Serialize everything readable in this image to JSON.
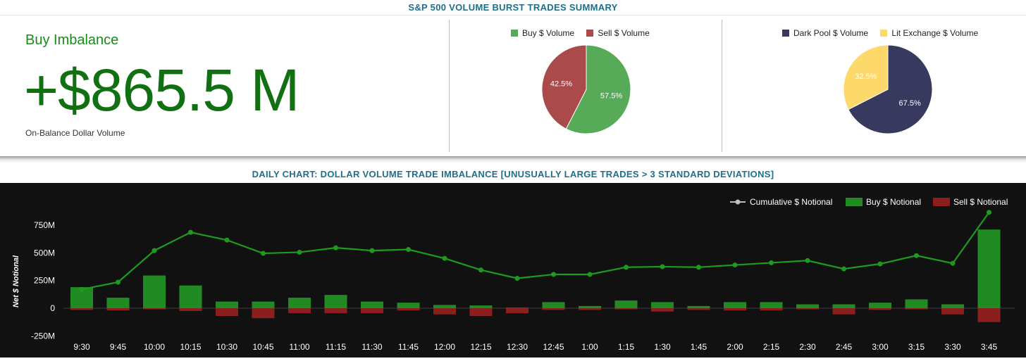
{
  "header": {
    "title": "S&P 500 VOLUME BURST TRADES SUMMARY"
  },
  "kpi": {
    "label": "Buy Imbalance",
    "value": "+$865.5 M",
    "sublabel": "On-Balance Dollar Volume"
  },
  "colors": {
    "buy_pie": "#57aa57",
    "sell_pie": "#aa4a4a",
    "dark_pool": "#38395f",
    "lit": "#fdd86b",
    "buy_bar": "#228a22",
    "sell_bar": "#8b1f1f",
    "line": "#1f9a1f",
    "title": "#1f6f8b",
    "kpi": "#117011"
  },
  "pie_buy_sell": {
    "slices": [
      {
        "name": "Buy $ Volume",
        "value": 57.5,
        "label": "57.5%"
      },
      {
        "name": "Sell $ Volume",
        "value": 42.5,
        "label": "42.5%"
      }
    ]
  },
  "pie_venue": {
    "slices": [
      {
        "name": "Dark Pool $ Volume",
        "value": 67.5,
        "label": "67.5%"
      },
      {
        "name": "Lit Exchange $ Volume",
        "value": 32.5,
        "label": "32.5%"
      }
    ]
  },
  "chart_title": "DAILY CHART: DOLLAR VOLUME TRADE IMBALANCE [UNUSUALLY LARGE TRADES > 3 STANDARD DEVIATIONS]",
  "chart_data": [
    {
      "type": "pie",
      "categories": [
        "Buy $ Volume",
        "Sell $ Volume"
      ],
      "values": [
        57.5,
        42.5
      ]
    },
    {
      "type": "pie",
      "categories": [
        "Dark Pool $ Volume",
        "Lit Exchange $ Volume"
      ],
      "values": [
        67.5,
        32.5
      ]
    },
    {
      "type": "bar",
      "ylabel": "Net $ Notional",
      "ylim": [
        -250,
        870
      ],
      "yticks": [
        750,
        500,
        250,
        0,
        -250
      ],
      "ytick_labels": [
        "750M",
        "500M",
        "250M",
        "0",
        "-250M"
      ],
      "categories": [
        "9:30",
        "9:45",
        "10:00",
        "10:15",
        "10:30",
        "10:45",
        "11:00",
        "11:15",
        "11:30",
        "11:45",
        "12:00",
        "12:15",
        "12:30",
        "12:45",
        "1:00",
        "1:15",
        "1:30",
        "1:45",
        "2:00",
        "2:15",
        "2:30",
        "2:45",
        "3:00",
        "3:15",
        "3:30",
        "3:45"
      ],
      "legend_position": "top-right",
      "series": [
        {
          "name": "Cumulative $ Notional",
          "kind": "line",
          "values": [
            170,
            235,
            520,
            685,
            615,
            495,
            505,
            545,
            520,
            530,
            450,
            345,
            270,
            305,
            305,
            370,
            375,
            370,
            390,
            410,
            430,
            355,
            400,
            475,
            405,
            865
          ]
        },
        {
          "name": "Buy $ Notional",
          "kind": "bar",
          "values": [
            190,
            95,
            295,
            205,
            60,
            60,
            95,
            120,
            60,
            50,
            30,
            25,
            5,
            55,
            20,
            70,
            55,
            20,
            55,
            55,
            35,
            35,
            50,
            80,
            35,
            710
          ]
        },
        {
          "name": "Sell $ Notional",
          "kind": "bar",
          "values": [
            -15,
            -20,
            -10,
            -25,
            -70,
            -90,
            -45,
            -45,
            -45,
            -20,
            -55,
            -70,
            -45,
            -15,
            -15,
            -10,
            -30,
            -15,
            -20,
            -20,
            -10,
            -55,
            -15,
            -10,
            -55,
            -125
          ]
        }
      ]
    }
  ]
}
